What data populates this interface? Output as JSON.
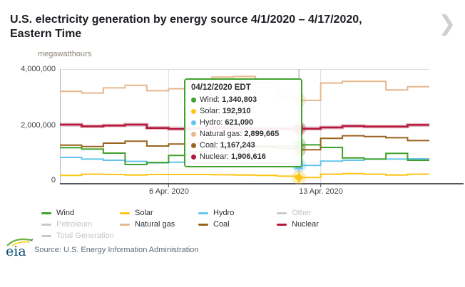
{
  "header": {
    "title_line1": "U.S. electricity generation by energy source 4/1/2020 – 4/17/2020,",
    "title_line2": "Eastern Time",
    "units_label": "megawatthours"
  },
  "icons": {
    "next_chevron": "❯"
  },
  "chart_data": {
    "type": "line",
    "step": true,
    "title": "U.S. electricity generation by energy source 4/1/2020 – 4/17/2020, Eastern Time",
    "ylabel": "megawatthours",
    "ylim": [
      0,
      4000000
    ],
    "grid": "light",
    "legend_position": "bottom",
    "yticks": [
      {
        "value": 0,
        "label": "0"
      },
      {
        "value": 2000000,
        "label": "2,000,000"
      },
      {
        "value": 4000000,
        "label": "4,000,000"
      }
    ],
    "x": [
      "4/1/2020",
      "4/2/2020",
      "4/3/2020",
      "4/4/2020",
      "4/5/2020",
      "4/6/2020",
      "4/7/2020",
      "4/8/2020",
      "4/9/2020",
      "4/10/2020",
      "4/11/2020",
      "4/12/2020",
      "4/13/2020",
      "4/14/2020",
      "4/15/2020",
      "4/16/2020",
      "4/17/2020"
    ],
    "xticks": [
      {
        "day_index": 5,
        "label": "6 Apr. 2020"
      },
      {
        "day_index": 12,
        "label": "13 Apr. 2020"
      }
    ],
    "hover_day_index": 11,
    "series": [
      {
        "name": "Natural gas",
        "color": "#e7b78c",
        "marker": "circle",
        "width": 2,
        "values": [
          3220000,
          3160000,
          3340000,
          3430000,
          3240000,
          3310000,
          3620000,
          3720000,
          3740000,
          3520000,
          3050000,
          2899665,
          3510000,
          3570000,
          3570000,
          3270000,
          3380000
        ]
      },
      {
        "name": "Nuclear",
        "color": "#b4173a",
        "marker": "square",
        "width": 2.5,
        "values": [
          2050000,
          1990000,
          2020000,
          2050000,
          1930000,
          1900000,
          1920000,
          1930000,
          1920000,
          1910000,
          1900000,
          1906616,
          1950000,
          2000000,
          1980000,
          1980000,
          2040000
        ]
      },
      {
        "name": "Hydro",
        "color": "#65c5ea",
        "marker": "square",
        "width": 2,
        "values": [
          900000,
          840000,
          800000,
          760000,
          710000,
          730000,
          750000,
          780000,
          760000,
          720000,
          680000,
          621090,
          770000,
          800000,
          840000,
          840000,
          850000
        ]
      },
      {
        "name": "Wind",
        "color": "#3fa22c",
        "marker": "circle",
        "width": 2,
        "values": [
          1240000,
          1190000,
          1050000,
          650000,
          720000,
          970000,
          1100000,
          1200000,
          1150000,
          1250000,
          1300000,
          1340803,
          1250000,
          880000,
          840000,
          1040000,
          800000
        ]
      },
      {
        "name": "Coal",
        "color": "#9a6420",
        "marker": "diamond",
        "width": 2,
        "values": [
          1330000,
          1280000,
          1400000,
          1470000,
          1300000,
          1370000,
          1380000,
          1400000,
          1360000,
          1300000,
          1220000,
          1167243,
          1570000,
          1660000,
          1630000,
          1590000,
          1490000
        ]
      },
      {
        "name": "Solar",
        "color": "#fdc517",
        "marker": "diamond",
        "width": 2,
        "values": [
          270000,
          310000,
          300000,
          280000,
          300000,
          300000,
          300000,
          290000,
          280000,
          270000,
          240000,
          192910,
          310000,
          330000,
          310000,
          280000,
          310000
        ]
      }
    ]
  },
  "tooltip": {
    "date_label": "04/12/2020 EDT",
    "rows": [
      {
        "name": "Wind",
        "value": "1,340,803",
        "color": "#3fa22c"
      },
      {
        "name": "Solar",
        "value": "192,910",
        "color": "#fdc517"
      },
      {
        "name": "Hydro",
        "value": "621,090",
        "color": "#65c5ea"
      },
      {
        "name": "Natural gas",
        "value": "2,899,665",
        "color": "#e7b78c"
      },
      {
        "name": "Coal",
        "value": "1,167,243",
        "color": "#9a6420"
      },
      {
        "name": "Nuclear",
        "value": "1,906,616",
        "color": "#b4173a"
      }
    ]
  },
  "legend": {
    "disabled_color": "#c9c9c9",
    "rows": [
      [
        {
          "label": "Wind",
          "color": "#3fa22c",
          "disabled": false
        },
        {
          "label": "Solar",
          "color": "#fdc517",
          "disabled": false
        },
        {
          "label": "Hydro",
          "color": "#65c5ea",
          "disabled": false
        },
        {
          "label": "Other",
          "color": "#c9c9c9",
          "disabled": true
        }
      ],
      [
        {
          "label": "Petroleum",
          "color": "#c9c9c9",
          "disabled": true
        },
        {
          "label": "Natural gas",
          "color": "#e7b78c",
          "disabled": false
        },
        {
          "label": "Coal",
          "color": "#9a6420",
          "disabled": false
        },
        {
          "label": "Nuclear",
          "color": "#b4173a",
          "disabled": false
        }
      ],
      [
        {
          "label": "Total Generation",
          "color": "#c9c9c9",
          "disabled": true
        }
      ]
    ]
  },
  "footer": {
    "logo_text": "eia",
    "source": "Source: U.S. Energy Information Administration"
  }
}
